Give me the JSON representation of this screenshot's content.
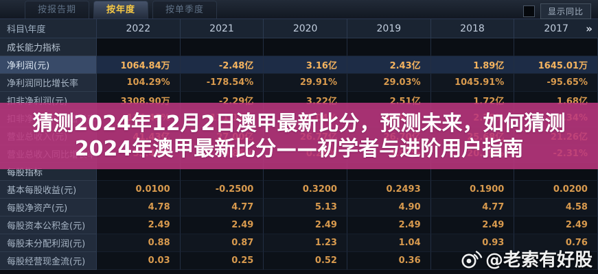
{
  "tabbar": {
    "tabs": [
      {
        "id": "by-report-period",
        "label": "按报告期",
        "active": false
      },
      {
        "id": "by-year",
        "label": "按年度",
        "active": true
      },
      {
        "id": "by-quarter",
        "label": "按单季度",
        "active": false
      }
    ],
    "yoy_toggle_label": "显示同比"
  },
  "table": {
    "corner_label": "科目\\年度",
    "years": [
      "2022",
      "2021",
      "2020",
      "2019",
      "2018",
      "2017"
    ],
    "more_symbol": "»",
    "rows": [
      {
        "type": "section",
        "label": "成长能力指标",
        "values": [
          "",
          "",
          "",
          "",
          "",
          ""
        ]
      },
      {
        "type": "data",
        "highlight": true,
        "label": "净利润(元)",
        "values": [
          "1064.84万",
          "-2.48亿",
          "3.16亿",
          "2.43亿",
          "1.89亿",
          "1645.01万"
        ]
      },
      {
        "type": "data",
        "highlight": false,
        "label": "净利润同比增长率",
        "values": [
          "104.29%",
          "-178.54%",
          "29.91%",
          "29.03%",
          "1045.91%",
          "-95.65%"
        ]
      },
      {
        "type": "data",
        "highlight": false,
        "label": "扣非净利润(元)",
        "values": [
          "3308.90万",
          "-2.29亿",
          "3.22亿",
          "2.51亿",
          "1.72亿",
          "1.68亿"
        ]
      },
      {
        "type": "data",
        "highlight": false,
        "label": "扣非净利润同比增长率",
        "values": [
          "114.48%",
          "-171.12%",
          "28.04%",
          "45.93%",
          "2.38%",
          "-56.34%"
        ]
      },
      {
        "type": "data",
        "highlight": false,
        "label": "营业总收入(元)",
        "values": [
          "41.43亿",
          "27.00亿",
          "26.77亿",
          "26.70亿",
          "25.68亿",
          "21.26亿"
        ]
      },
      {
        "type": "data",
        "highlight": false,
        "label": "营业总收入同比增长率",
        "values": [
          "53.44%",
          "0.86%",
          "0.26%",
          "3.97%",
          "20.79%",
          "-2.31%"
        ]
      },
      {
        "type": "section",
        "label": "每股指标",
        "values": [
          "",
          "",
          "",
          "",
          "",
          ""
        ]
      },
      {
        "type": "data",
        "highlight": false,
        "label": "基本每股收益(元)",
        "values": [
          "0.0100",
          "-0.2500",
          "0.3200",
          "0.2493",
          "0.1900",
          "0.0200"
        ]
      },
      {
        "type": "data",
        "highlight": false,
        "label": "每股净资产(元)",
        "values": [
          "4.78",
          "4.77",
          "5.13",
          "4.90",
          "4.77",
          "4.58"
        ]
      },
      {
        "type": "data",
        "highlight": false,
        "label": "每股资本公积金(元)",
        "values": [
          "2.49",
          "2.49",
          "2.49",
          "2.49",
          "2.49",
          "2.49"
        ]
      },
      {
        "type": "data",
        "highlight": false,
        "label": "每股未分配利润(元)",
        "values": [
          "0.88",
          "0.87",
          "1.23",
          "1.04",
          "0.93",
          "0.76"
        ]
      },
      {
        "type": "data",
        "highlight": false,
        "label": "每股经营现金流(元)",
        "values": [
          "0.03",
          "0.25",
          "0.52",
          "0.36",
          "",
          ""
        ]
      }
    ]
  },
  "banner": {
    "line1": "猜测2024年12月2日澳甲最新比分，预测未来，如何猜测",
    "line2": "2024年澳甲最新比分——初学者与进阶用户指南",
    "band_color": "#bc367e"
  },
  "watermark": {
    "handle": "@老索有好股",
    "icon": "weibo-icon"
  },
  "colors": {
    "accent_yellow": "#f6c844",
    "value_orange": "#d89a4e",
    "highlight_row_bg": "#1d2c46",
    "banner_magenta": "#bc367e",
    "background": "#0a0e15"
  }
}
